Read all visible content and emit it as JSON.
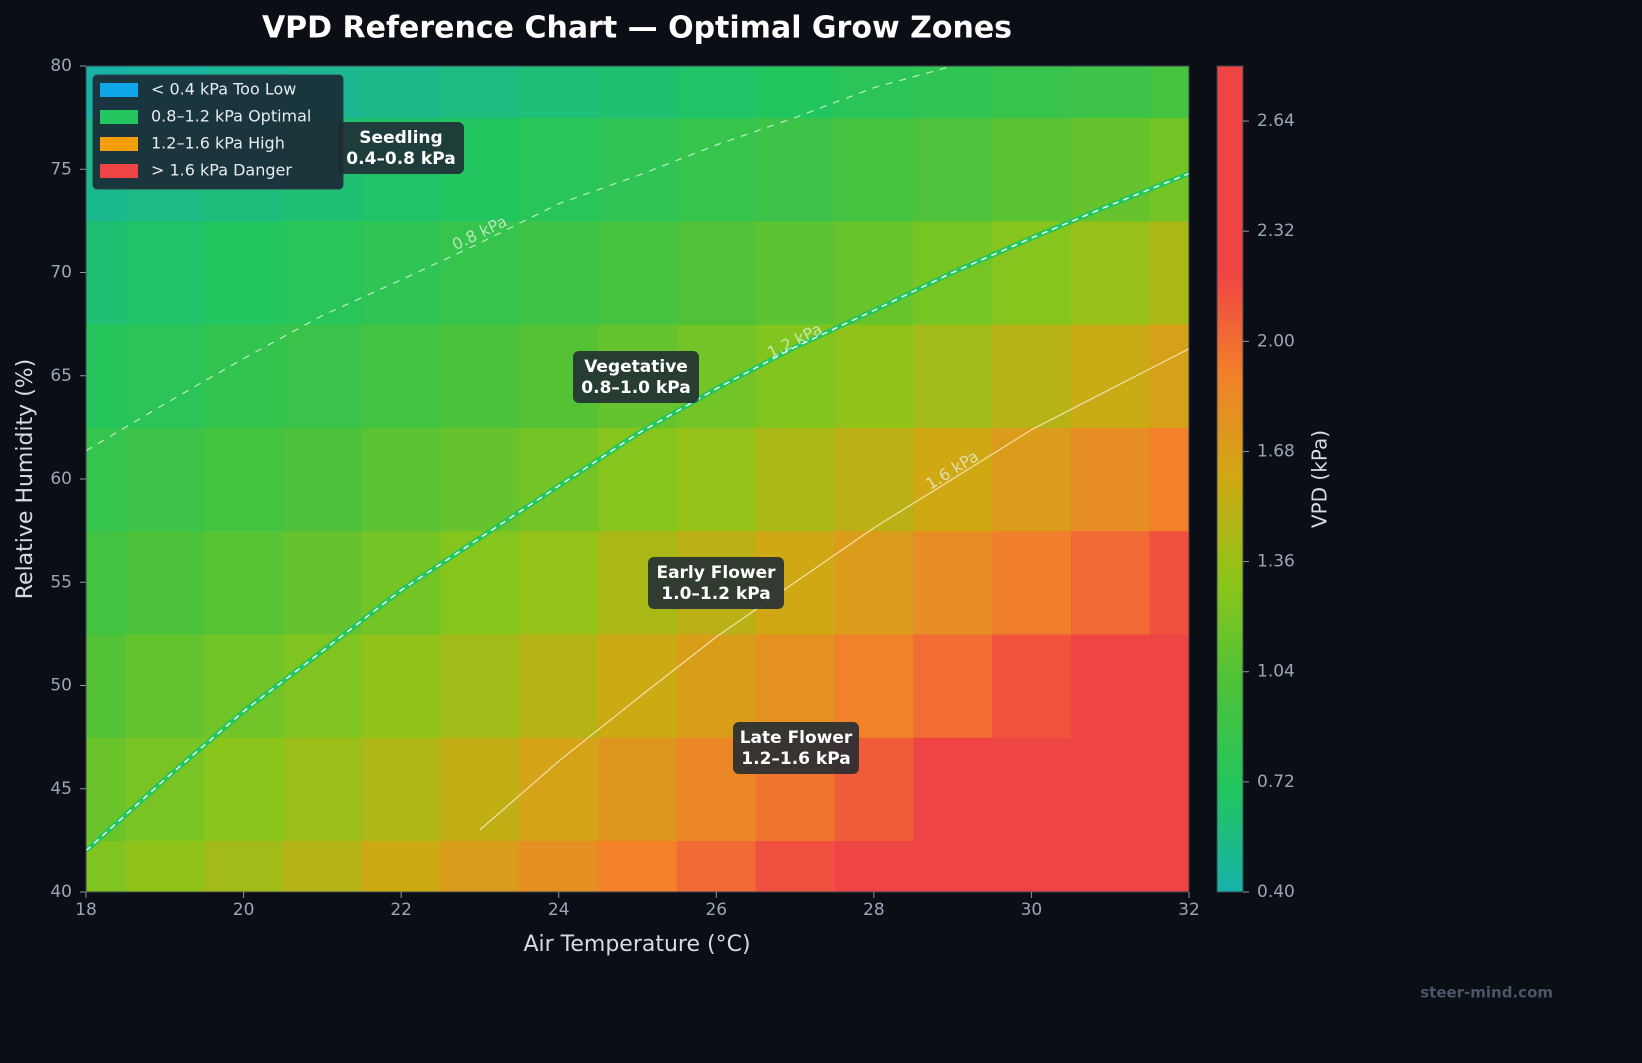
{
  "chart_data": {
    "type": "contour",
    "title": "VPD Reference Chart — Optimal Grow Zones",
    "x_label": "Air Temperature (°C)",
    "y_label": "Relative Humidity (%)",
    "colorbar_label": "VPD (kPa)",
    "x": [
      18,
      19,
      20,
      21,
      22,
      23,
      24,
      25,
      26,
      27,
      28,
      29,
      30,
      31,
      32
    ],
    "y": [
      40,
      45,
      50,
      55,
      60,
      65,
      70,
      75,
      80
    ],
    "z": [
      [
        1.24,
        1.32,
        1.4,
        1.49,
        1.59,
        1.69,
        1.79,
        1.9,
        2.02,
        2.14,
        2.27,
        2.4,
        2.55,
        2.7,
        2.85
      ],
      [
        1.14,
        1.21,
        1.29,
        1.37,
        1.45,
        1.54,
        1.64,
        1.74,
        1.85,
        1.96,
        2.08,
        2.2,
        2.33,
        2.47,
        2.62
      ],
      [
        1.03,
        1.1,
        1.17,
        1.24,
        1.32,
        1.4,
        1.49,
        1.58,
        1.68,
        1.78,
        1.89,
        2.0,
        2.12,
        2.25,
        2.38
      ],
      [
        0.93,
        0.99,
        1.05,
        1.12,
        1.19,
        1.26,
        1.34,
        1.43,
        1.51,
        1.6,
        1.7,
        1.8,
        1.91,
        2.02,
        2.14
      ],
      [
        0.83,
        0.88,
        0.94,
        0.99,
        1.06,
        1.12,
        1.19,
        1.27,
        1.34,
        1.43,
        1.51,
        1.6,
        1.7,
        1.8,
        1.9
      ],
      [
        0.72,
        0.77,
        0.82,
        0.87,
        0.93,
        0.98,
        1.04,
        1.11,
        1.18,
        1.25,
        1.32,
        1.4,
        1.49,
        1.57,
        1.66
      ],
      [
        0.62,
        0.66,
        0.7,
        0.75,
        0.79,
        0.84,
        0.9,
        0.95,
        1.01,
        1.07,
        1.13,
        1.2,
        1.27,
        1.35,
        1.43
      ],
      [
        0.52,
        0.55,
        0.58,
        0.62,
        0.66,
        0.7,
        0.75,
        0.79,
        0.84,
        0.89,
        0.95,
        1.0,
        1.06,
        1.12,
        1.19
      ],
      [
        0.41,
        0.44,
        0.47,
        0.5,
        0.53,
        0.56,
        0.6,
        0.63,
        0.67,
        0.71,
        0.76,
        0.8,
        0.85,
        0.89,
        0.95
      ]
    ],
    "xlim": [
      18,
      32
    ],
    "ylim": [
      40,
      80
    ],
    "xticks": [
      18,
      20,
      22,
      24,
      26,
      28,
      30,
      32
    ],
    "yticks": [
      40,
      45,
      50,
      55,
      60,
      65,
      70,
      75,
      80
    ],
    "clim": [
      0.4,
      2.8
    ],
    "cticks": [
      {
        "value": 0.4,
        "label": "0.40"
      },
      0.72,
      1.04,
      1.36,
      1.68,
      {
        "value": 2,
        "label": "2.00"
      },
      2.32,
      2.64
    ],
    "colormap": [
      "#17b2aa",
      "#22c55e",
      "#4dc23a",
      "#8cc51a",
      "#cfa814",
      "#f2812a",
      "#ef4444",
      "#ef4444",
      "#ef4444"
    ],
    "contours": [
      {
        "level": 0.8,
        "label": "0.8 kPa",
        "color": "#e6ffee"
      },
      {
        "level": 1.2,
        "label": "1.2 kPa",
        "color": "#22c55e"
      },
      {
        "level": 1.6,
        "label": "1.6 kPa",
        "color": "#fff6d8"
      }
    ],
    "legend": [
      {
        "name": "< 0.4 kPa  Too Low",
        "color": "#0ea5e9"
      },
      {
        "name": "0.8–1.2 kPa  Optimal",
        "color": "#22c55e"
      },
      {
        "name": "1.2–1.6 kPa  High",
        "color": "#f59e0b"
      },
      {
        "name": "> 1.6 kPa  Danger",
        "color": "#ef4444"
      }
    ],
    "annotations": [
      {
        "title": "Seedling",
        "range": "0.4–0.8 kPa"
      },
      {
        "title": "Vegetative",
        "range": "0.8–1.0 kPa"
      },
      {
        "title": "Early Flower",
        "range": "1.0–1.2 kPa"
      },
      {
        "title": "Late Flower",
        "range": "1.2–1.6 kPa"
      }
    ],
    "watermark": "steer-mind.com"
  }
}
